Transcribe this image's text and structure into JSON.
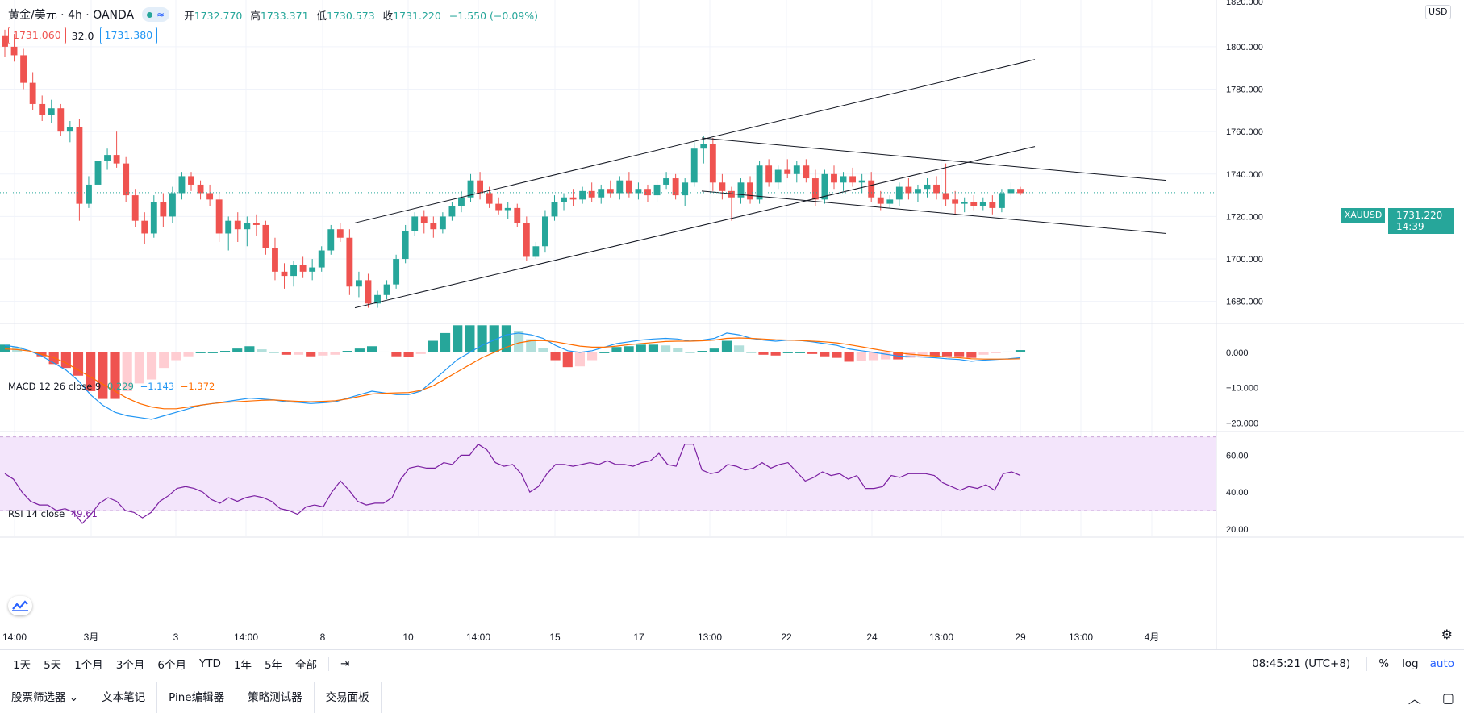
{
  "header": {
    "symbol_title": "黄金/美元 · 4h · OANDA",
    "ohlc": {
      "open_label": "开",
      "open": "1732.770",
      "high_label": "高",
      "high": "1733.371",
      "low_label": "低",
      "low": "1730.573",
      "close_label": "收",
      "close": "1731.220",
      "change": "−1.550 (−0.09%)"
    },
    "bid": "1731.060",
    "spread": "32.0",
    "ask": "1731.380"
  },
  "price_axis": {
    "currency": "USD",
    "top_tick": "1820.000",
    "ticks": [
      "1800.000",
      "1780.000",
      "1760.000",
      "1740.000",
      "1720.000",
      "1700.000",
      "1680.000"
    ],
    "last_price_symbol": "XAUUSD",
    "last_price": "1731.220",
    "countdown": "14:39"
  },
  "macd": {
    "label": "MACD 12 26 close 9",
    "v1": "0.229",
    "v2": "−1.143",
    "v3": "−1.372",
    "ticks": [
      "0.000",
      "−10.000",
      "−20.000"
    ]
  },
  "rsi": {
    "label": "RSI 14 close",
    "value": "49.61",
    "ticks": [
      "60.00",
      "40.00",
      "20.00"
    ]
  },
  "time_axis": [
    "14:00",
    "3月",
    "3",
    "14:00",
    "8",
    "10",
    "14:00",
    "15",
    "17",
    "13:00",
    "22",
    "24",
    "13:00",
    "29",
    "13:00",
    "4月"
  ],
  "ranges": [
    "1天",
    "5天",
    "1个月",
    "3个月",
    "6个月",
    "YTD",
    "1年",
    "5年",
    "全部"
  ],
  "timebar_right": {
    "clock": "08:45:21 (UTC+8)",
    "percent": "%",
    "log": "log",
    "auto": "auto"
  },
  "panel_tabs": [
    "股票筛选器",
    "文本笔记",
    "Pine编辑器",
    "策略测试器",
    "交易面板"
  ],
  "colors": {
    "up": "#26a69a",
    "down": "#ef5350",
    "macd_line": "#2196f3",
    "signal_line": "#ff6d00",
    "rsi_line": "#7b1fa2",
    "rsi_band": "#f3e5fb"
  },
  "chart_data": [
    {
      "type": "candlestick",
      "title": "黄金/美元 4h OANDA",
      "ylim": [
        1670,
        1822
      ],
      "grid": true,
      "candles": [
        [
          1805,
          1808,
          1795,
          1800
        ],
        [
          1800,
          1806,
          1793,
          1796
        ],
        [
          1796,
          1799,
          1780,
          1783
        ],
        [
          1783,
          1788,
          1770,
          1773
        ],
        [
          1773,
          1777,
          1765,
          1768
        ],
        [
          1768,
          1775,
          1764,
          1771
        ],
        [
          1771,
          1773,
          1758,
          1760
        ],
        [
          1760,
          1765,
          1755,
          1762
        ],
        [
          1762,
          1766,
          1718,
          1726
        ],
        [
          1726,
          1739,
          1724,
          1735
        ],
        [
          1735,
          1750,
          1733,
          1746
        ],
        [
          1746,
          1752,
          1742,
          1749
        ],
        [
          1749,
          1760,
          1743,
          1745
        ],
        [
          1745,
          1748,
          1727,
          1730
        ],
        [
          1730,
          1733,
          1715,
          1718
        ],
        [
          1718,
          1722,
          1707,
          1712
        ],
        [
          1712,
          1730,
          1710,
          1727
        ],
        [
          1727,
          1731,
          1715,
          1720
        ],
        [
          1720,
          1734,
          1717,
          1731
        ],
        [
          1731,
          1741,
          1728,
          1739
        ],
        [
          1739,
          1741,
          1732,
          1735
        ],
        [
          1735,
          1737,
          1728,
          1731
        ],
        [
          1731,
          1735,
          1725,
          1728
        ],
        [
          1728,
          1731,
          1708,
          1712
        ],
        [
          1712,
          1720,
          1704,
          1718
        ],
        [
          1718,
          1722,
          1708,
          1714
        ],
        [
          1714,
          1720,
          1706,
          1717
        ],
        [
          1717,
          1721,
          1711,
          1716
        ],
        [
          1716,
          1718,
          1702,
          1705
        ],
        [
          1705,
          1710,
          1690,
          1694
        ],
        [
          1694,
          1698,
          1686,
          1692
        ],
        [
          1692,
          1699,
          1687,
          1697
        ],
        [
          1697,
          1701,
          1691,
          1694
        ],
        [
          1694,
          1700,
          1690,
          1696
        ],
        [
          1696,
          1706,
          1694,
          1704
        ],
        [
          1704,
          1716,
          1702,
          1714
        ],
        [
          1714,
          1717,
          1708,
          1710
        ],
        [
          1710,
          1714,
          1683,
          1687
        ],
        [
          1687,
          1694,
          1682,
          1690
        ],
        [
          1690,
          1693,
          1677,
          1679
        ],
        [
          1679,
          1685,
          1677,
          1683
        ],
        [
          1683,
          1690,
          1681,
          1688
        ],
        [
          1688,
          1702,
          1686,
          1700
        ],
        [
          1700,
          1716,
          1698,
          1713
        ],
        [
          1713,
          1722,
          1711,
          1720
        ],
        [
          1720,
          1723,
          1712,
          1717
        ],
        [
          1717,
          1720,
          1710,
          1714
        ],
        [
          1714,
          1722,
          1712,
          1720
        ],
        [
          1720,
          1727,
          1718,
          1725
        ],
        [
          1725,
          1732,
          1722,
          1729
        ],
        [
          1729,
          1740,
          1727,
          1737
        ],
        [
          1737,
          1741,
          1728,
          1731
        ],
        [
          1731,
          1734,
          1724,
          1726
        ],
        [
          1726,
          1729,
          1721,
          1723
        ],
        [
          1723,
          1727,
          1719,
          1724
        ],
        [
          1724,
          1726,
          1715,
          1717
        ],
        [
          1717,
          1720,
          1699,
          1701
        ],
        [
          1701,
          1708,
          1700,
          1706
        ],
        [
          1706,
          1723,
          1703,
          1720
        ],
        [
          1720,
          1730,
          1718,
          1727
        ],
        [
          1727,
          1731,
          1723,
          1729
        ],
        [
          1729,
          1733,
          1725,
          1728
        ],
        [
          1728,
          1734,
          1726,
          1732
        ],
        [
          1732,
          1736,
          1727,
          1729
        ],
        [
          1729,
          1735,
          1726,
          1733
        ],
        [
          1733,
          1737,
          1729,
          1731
        ],
        [
          1731,
          1739,
          1728,
          1737
        ],
        [
          1737,
          1741,
          1729,
          1731
        ],
        [
          1731,
          1736,
          1728,
          1733
        ],
        [
          1733,
          1735,
          1727,
          1730
        ],
        [
          1730,
          1737,
          1727,
          1735
        ],
        [
          1735,
          1741,
          1733,
          1738
        ],
        [
          1738,
          1740,
          1728,
          1730
        ],
        [
          1730,
          1738,
          1725,
          1736
        ],
        [
          1736,
          1755,
          1734,
          1752
        ],
        [
          1752,
          1758,
          1745,
          1754
        ],
        [
          1754,
          1757,
          1732,
          1736
        ],
        [
          1736,
          1740,
          1728,
          1732
        ],
        [
          1732,
          1734,
          1718,
          1729
        ],
        [
          1729,
          1738,
          1726,
          1736
        ],
        [
          1736,
          1739,
          1726,
          1728
        ],
        [
          1728,
          1746,
          1726,
          1744
        ],
        [
          1744,
          1747,
          1734,
          1736
        ],
        [
          1736,
          1744,
          1733,
          1742
        ],
        [
          1742,
          1747,
          1738,
          1740
        ],
        [
          1740,
          1746,
          1736,
          1744
        ],
        [
          1744,
          1747,
          1736,
          1738
        ],
        [
          1738,
          1742,
          1725,
          1728
        ],
        [
          1728,
          1742,
          1726,
          1740
        ],
        [
          1740,
          1744,
          1733,
          1736
        ],
        [
          1736,
          1741,
          1732,
          1739
        ],
        [
          1739,
          1743,
          1734,
          1736
        ],
        [
          1736,
          1740,
          1731,
          1737
        ],
        [
          1737,
          1741,
          1727,
          1729
        ],
        [
          1729,
          1732,
          1723,
          1726
        ],
        [
          1726,
          1730,
          1724,
          1728
        ],
        [
          1728,
          1736,
          1725,
          1734
        ],
        [
          1734,
          1738,
          1728,
          1731
        ],
        [
          1731,
          1735,
          1727,
          1733
        ],
        [
          1733,
          1738,
          1729,
          1735
        ],
        [
          1735,
          1739,
          1728,
          1731
        ],
        [
          1731,
          1745,
          1725,
          1728
        ],
        [
          1728,
          1732,
          1721,
          1726
        ],
        [
          1726,
          1729,
          1722,
          1727
        ],
        [
          1727,
          1730,
          1723,
          1725
        ],
        [
          1725,
          1729,
          1723,
          1727
        ],
        [
          1727,
          1730,
          1721,
          1724
        ],
        [
          1724,
          1733,
          1722,
          1731
        ],
        [
          1731,
          1736,
          1728,
          1733
        ],
        [
          1733,
          1734,
          1730,
          1731
        ]
      ],
      "trendlines": [
        {
          "x1": 0.44,
          "y1": 1717,
          "x2": 1.0,
          "y2": 1794,
          "ref": "upper channel"
        },
        {
          "x1": 0.44,
          "y1": 1677,
          "x2": 1.0,
          "y2": 1753,
          "ref": "lower channel"
        },
        {
          "x1": 0.0,
          "y1": 1757,
          "x2": 1.0,
          "y2": 1737,
          "ref": "falling upper"
        },
        {
          "x1": 0.0,
          "y1": 1732,
          "x2": 1.0,
          "y2": 1712,
          "ref": "falling lower"
        }
      ]
    },
    {
      "type": "bar",
      "title": "MACD 12 26 close 9",
      "ylim": [
        -22,
        8
      ],
      "macd": [
        2,
        1.5,
        0.5,
        -1,
        -3,
        -5,
        -8,
        -12,
        -15,
        -17,
        -18,
        -18.5,
        -19,
        -18,
        -17,
        -16,
        -15,
        -14.5,
        -14,
        -13.5,
        -13,
        -13.2,
        -13.5,
        -14,
        -14.2,
        -14.5,
        -14.3,
        -14,
        -13,
        -12,
        -11,
        -11.5,
        -12,
        -12,
        -11,
        -8,
        -5,
        -2,
        0,
        2,
        3.5,
        5,
        5.5,
        5,
        4,
        2,
        0.5,
        0,
        0.5,
        1.5,
        2.5,
        3,
        3.5,
        3.8,
        4,
        3.8,
        3.2,
        3.5,
        4,
        5.5,
        5,
        4,
        3.5,
        3.2,
        3.5,
        3.4,
        3,
        2.5,
        2,
        1,
        0.5,
        0,
        -0.5,
        -1,
        -1.2,
        -1.3,
        -1.5,
        -1.8,
        -2,
        -2.5,
        -2.2,
        -2,
        -1.8,
        -1.5
      ],
      "signal": [
        1,
        0.8,
        0.4,
        -0.5,
        -1.5,
        -3,
        -5,
        -7,
        -9,
        -11,
        -13,
        -14.5,
        -15.5,
        -16,
        -16,
        -15.5,
        -15,
        -14.5,
        -14.2,
        -14,
        -13.8,
        -13.6,
        -13.5,
        -13.7,
        -13.9,
        -14,
        -13.9,
        -13.7,
        -13.2,
        -12.5,
        -11.8,
        -11.6,
        -11.5,
        -11.4,
        -10.8,
        -9.5,
        -7.5,
        -5.5,
        -3.5,
        -1.5,
        0,
        1.5,
        2.7,
        3.3,
        3.4,
        3,
        2.4,
        1.8,
        1.5,
        1.5,
        1.8,
        2.2,
        2.5,
        2.8,
        3.1,
        3.2,
        3.2,
        3.3,
        3.5,
        4,
        4.1,
        4,
        3.8,
        3.6,
        3.5,
        3.4,
        3.2,
        3,
        2.7,
        2.2,
        1.6,
        1,
        0.4,
        -0.1,
        -0.5,
        -0.8,
        -1,
        -1.3,
        -1.5,
        -1.8,
        -1.9,
        -1.9,
        -1.9,
        -1.8
      ]
    },
    {
      "type": "line",
      "title": "RSI 14 close",
      "ylim": [
        16,
        72
      ],
      "band": [
        30,
        70
      ],
      "values": [
        50,
        47,
        40,
        35,
        33,
        33,
        30,
        31,
        29,
        23,
        28,
        34,
        37,
        35,
        30,
        29,
        26,
        29,
        35,
        38,
        42,
        43,
        42,
        40,
        36,
        34,
        37,
        35,
        37,
        38,
        37,
        35,
        31,
        30,
        28,
        32,
        33,
        32,
        40,
        46,
        41,
        35,
        33,
        34,
        34,
        37,
        47,
        53,
        54,
        53,
        53,
        56,
        55,
        60,
        60,
        66,
        63,
        56,
        54,
        55,
        50,
        40,
        43,
        50,
        55,
        55,
        54,
        55,
        56,
        55,
        57,
        55,
        55,
        54,
        56,
        57,
        61,
        55,
        54,
        66,
        66,
        52,
        50,
        51,
        55,
        54,
        52,
        53,
        56,
        53,
        55,
        56,
        51,
        46,
        48,
        51,
        49,
        50,
        47,
        49,
        42,
        42,
        43,
        49,
        48,
        50,
        50,
        50,
        49,
        45,
        43,
        41,
        43,
        42,
        44,
        41,
        50,
        51,
        49
      ]
    }
  ]
}
